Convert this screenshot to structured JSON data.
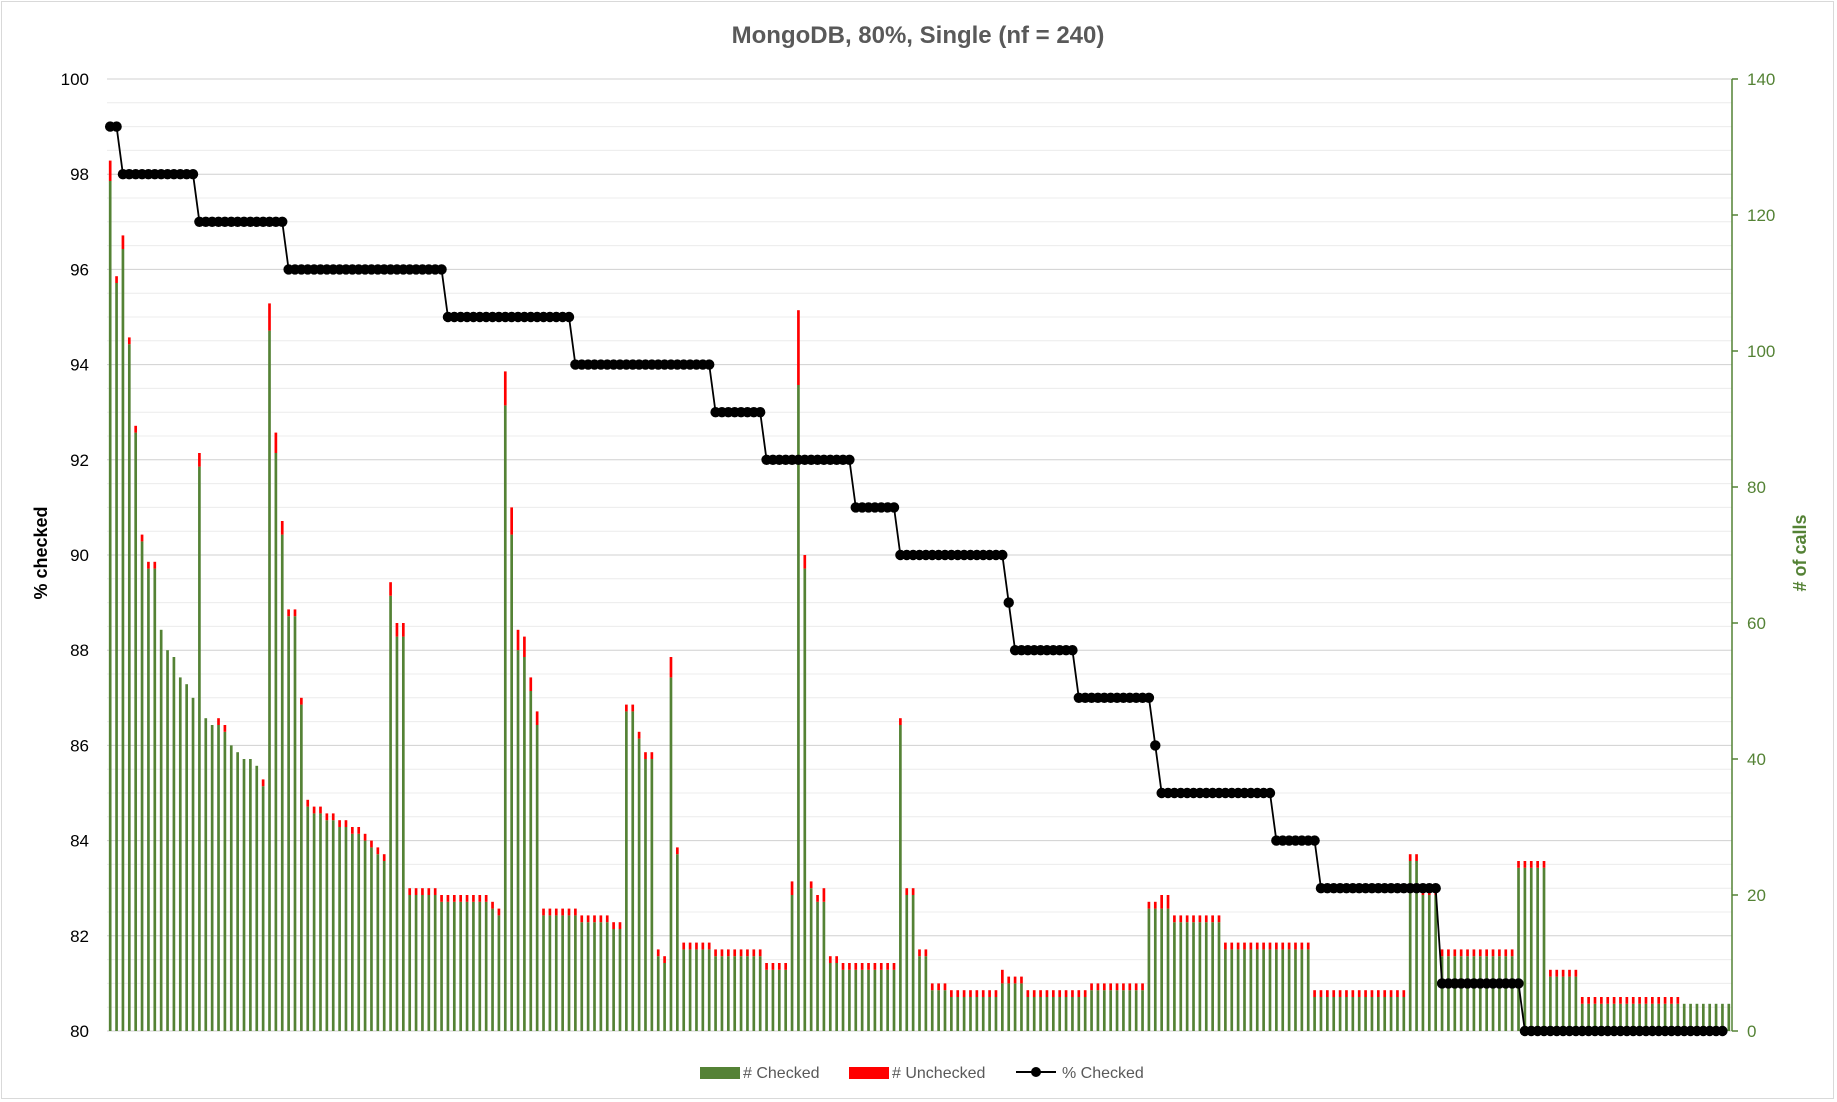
{
  "chart_data": {
    "type": "bar",
    "title": "MongoDB, 80%, Single (nf = 240)",
    "ylabel": "% checked",
    "y2label": "# of calls",
    "ylim": [
      80,
      100
    ],
    "y2lim": [
      0,
      140
    ],
    "yticks": [
      "80",
      "82",
      "84",
      "86",
      "88",
      "90",
      "92",
      "94",
      "96",
      "98",
      "100"
    ],
    "y2ticks": [
      "0",
      "20",
      "40",
      "60",
      "80",
      "100",
      "120",
      "140"
    ],
    "grid": true,
    "legend_position": "bottom",
    "stacked": true,
    "series": [
      {
        "name": "# Checked",
        "color": "#548235",
        "axis": "secondary"
      },
      {
        "name": "# Unchecked",
        "color": "#ff0000",
        "axis": "secondary"
      },
      {
        "name": "% Checked",
        "color": "#000000",
        "axis": "primary",
        "marker": "circle"
      }
    ],
    "pct_checked": [
      99,
      99,
      98,
      98,
      98,
      98,
      98,
      98,
      98,
      98,
      98,
      98,
      98,
      98,
      97,
      97,
      97,
      97,
      97,
      97,
      97,
      97,
      97,
      97,
      97,
      97,
      97,
      97,
      96,
      96,
      96,
      96,
      96,
      96,
      96,
      96,
      96,
      96,
      96,
      96,
      96,
      96,
      96,
      96,
      96,
      96,
      96,
      96,
      96,
      96,
      96,
      96,
      96,
      95,
      95,
      95,
      95,
      95,
      95,
      95,
      95,
      95,
      95,
      95,
      95,
      95,
      95,
      95,
      95,
      95,
      95,
      95,
      95,
      94,
      94,
      94,
      94,
      94,
      94,
      94,
      94,
      94,
      94,
      94,
      94,
      94,
      94,
      94,
      94,
      94,
      94,
      94,
      94,
      94,
      94,
      93,
      93,
      93,
      93,
      93,
      93,
      93,
      93,
      92,
      92,
      92,
      92,
      92,
      92,
      92,
      92,
      92,
      92,
      92,
      92,
      92,
      92,
      91,
      91,
      91,
      91,
      91,
      91,
      91,
      90,
      90,
      90,
      90,
      90,
      90,
      90,
      90,
      90,
      90,
      90,
      90,
      90,
      90,
      90,
      90,
      90,
      89,
      88,
      88,
      88,
      88,
      88,
      88,
      88,
      88,
      88,
      88,
      87,
      87,
      87,
      87,
      87,
      87,
      87,
      87,
      87,
      87,
      87,
      87,
      86,
      85,
      85,
      85,
      85,
      85,
      85,
      85,
      85,
      85,
      85,
      85,
      85,
      85,
      85,
      85,
      85,
      85,
      85,
      84,
      84,
      84,
      84,
      84,
      84,
      84,
      83,
      83,
      83,
      83,
      83,
      83,
      83,
      83,
      83,
      83,
      83,
      83,
      83,
      83,
      83,
      83,
      83,
      83,
      83,
      81,
      81,
      81,
      81,
      81,
      81,
      81,
      81,
      81,
      81,
      81,
      81,
      81,
      80,
      80,
      80,
      80,
      80,
      80,
      80,
      80,
      80,
      80,
      80,
      80,
      80,
      80,
      80,
      80,
      80,
      80,
      80,
      80,
      80,
      80,
      80,
      80,
      80,
      80,
      80,
      80,
      80,
      80,
      80,
      80
    ],
    "calls_checked": [
      125,
      110,
      115,
      101,
      88,
      72,
      68,
      68,
      59,
      56,
      55,
      52,
      51,
      49,
      83,
      46,
      45,
      45,
      44,
      42,
      41,
      40,
      40,
      39,
      36,
      103,
      85,
      73,
      61,
      61,
      48,
      33,
      32,
      32,
      31,
      31,
      30,
      30,
      29,
      29,
      28,
      27,
      26,
      25,
      64,
      58,
      58,
      20,
      20,
      20,
      20,
      20,
      19,
      19,
      19,
      19,
      19,
      19,
      19,
      19,
      18,
      17,
      92,
      73,
      56,
      55,
      50,
      45,
      17,
      17,
      17,
      17,
      17,
      17,
      16,
      16,
      16,
      16,
      16,
      15,
      15,
      47,
      47,
      43,
      40,
      40,
      11,
      10,
      52,
      26,
      12,
      12,
      12,
      12,
      12,
      11,
      11,
      11,
      11,
      11,
      11,
      11,
      11,
      9,
      9,
      9,
      9,
      20,
      95,
      68,
      21,
      19,
      19,
      10,
      10,
      9,
      9,
      9,
      9,
      9,
      9,
      9,
      9,
      9,
      45,
      20,
      20,
      11,
      11,
      6,
      6,
      6,
      5,
      5,
      5,
      5,
      5,
      5,
      5,
      5,
      7,
      7,
      7,
      7,
      5,
      5,
      5,
      5,
      5,
      5,
      5,
      5,
      5,
      5,
      6,
      6,
      6,
      6,
      6,
      6,
      6,
      6,
      6,
      18,
      18,
      18,
      18,
      16,
      16,
      16,
      16,
      16,
      16,
      16,
      16,
      12,
      12,
      12,
      12,
      12,
      12,
      12,
      12,
      12,
      12,
      12,
      12,
      12,
      12,
      5,
      5,
      5,
      5,
      5,
      5,
      5,
      5,
      5,
      5,
      5,
      5,
      5,
      5,
      5,
      25,
      25,
      20,
      20,
      20,
      11,
      11,
      11,
      11,
      11,
      11,
      11,
      11,
      11,
      11,
      11,
      11,
      24,
      24,
      24,
      24,
      24,
      8,
      8,
      8,
      8,
      8,
      4,
      4,
      4,
      4,
      4,
      4,
      4,
      4,
      4,
      4,
      4,
      4,
      4,
      4,
      4,
      4,
      4,
      4,
      4,
      4,
      4,
      4,
      4,
      4
    ],
    "calls_unchecked": [
      3,
      1,
      2,
      1,
      1,
      1,
      1,
      1,
      0,
      0,
      0,
      0,
      0,
      0,
      2,
      0,
      0,
      1,
      1,
      0,
      0,
      0,
      0,
      0,
      1,
      4,
      3,
      2,
      1,
      1,
      1,
      1,
      1,
      1,
      1,
      1,
      1,
      1,
      1,
      1,
      1,
      1,
      1,
      1,
      2,
      2,
      2,
      1,
      1,
      1,
      1,
      1,
      1,
      1,
      1,
      1,
      1,
      1,
      1,
      1,
      1,
      1,
      5,
      4,
      3,
      3,
      2,
      2,
      1,
      1,
      1,
      1,
      1,
      1,
      1,
      1,
      1,
      1,
      1,
      1,
      1,
      1,
      1,
      1,
      1,
      1,
      1,
      1,
      3,
      1,
      1,
      1,
      1,
      1,
      1,
      1,
      1,
      1,
      1,
      1,
      1,
      1,
      1,
      1,
      1,
      1,
      1,
      2,
      11,
      2,
      1,
      1,
      2,
      1,
      1,
      1,
      1,
      1,
      1,
      1,
      1,
      1,
      1,
      1,
      1,
      1,
      1,
      1,
      1,
      1,
      1,
      1,
      1,
      1,
      1,
      1,
      1,
      1,
      1,
      1,
      2,
      1,
      1,
      1,
      1,
      1,
      1,
      1,
      1,
      1,
      1,
      1,
      1,
      1,
      1,
      1,
      1,
      1,
      1,
      1,
      1,
      1,
      1,
      1,
      1,
      2,
      2,
      1,
      1,
      1,
      1,
      1,
      1,
      1,
      1,
      1,
      1,
      1,
      1,
      1,
      1,
      1,
      1,
      1,
      1,
      1,
      1,
      1,
      1,
      1,
      1,
      1,
      1,
      1,
      1,
      1,
      1,
      1,
      1,
      1,
      1,
      1,
      1,
      1,
      1,
      1,
      1,
      1,
      1,
      1,
      1,
      1,
      1,
      1,
      1,
      1,
      1,
      1,
      1,
      1,
      1,
      1,
      1,
      1,
      1,
      1,
      1,
      1,
      1,
      1,
      1,
      1,
      1,
      1,
      1,
      1,
      1,
      1,
      1,
      1,
      1,
      1,
      1,
      1,
      1,
      1,
      1
    ]
  }
}
